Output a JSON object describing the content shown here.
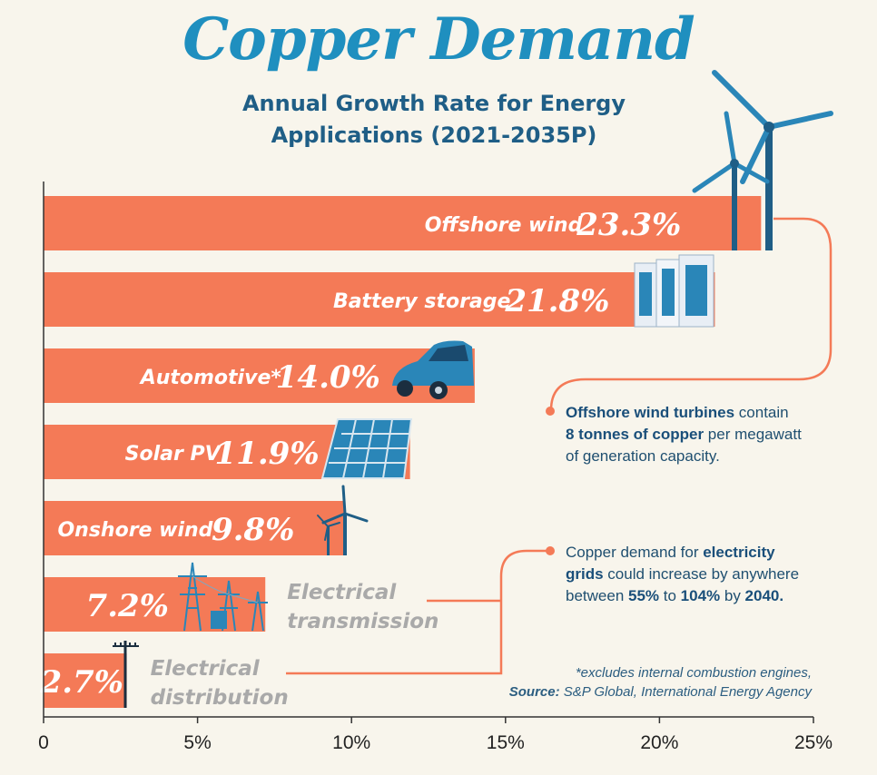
{
  "title": "Copper Demand",
  "subtitle_line1": "Annual Growth Rate for Energy",
  "subtitle_line2": "Applications (2021-2035P)",
  "colors": {
    "bar": "#f47a57",
    "title": "#1f8fbf",
    "text_dark": "#1f4f70",
    "muted_label": "#a9a9a9",
    "icon_blue": "#2a86b8"
  },
  "chart_data": {
    "type": "bar",
    "orientation": "horizontal",
    "categories": [
      "Offshore wind",
      "Battery storage",
      "Automotive*",
      "Solar PV",
      "Onshore wind",
      "Electrical transmission",
      "Electrical distribution"
    ],
    "values": [
      23.3,
      21.8,
      14.0,
      11.9,
      9.8,
      7.2,
      2.7
    ],
    "value_labels": [
      "23.3%",
      "21.8%",
      "14.0%",
      "11.9%",
      "9.8%",
      "7.2%",
      "2.7%"
    ],
    "label_text": [
      "Offshore wind",
      "Battery storage",
      "Automotive*",
      "Solar PV",
      "Onshore wind",
      "Electrical\ntransmission",
      "Electrical\ndistribution"
    ],
    "label_inside": [
      true,
      true,
      true,
      true,
      true,
      false,
      false
    ],
    "xlim": [
      0,
      25
    ],
    "xticks": [
      0,
      5,
      10,
      15,
      20,
      25
    ],
    "xtick_labels": [
      "0",
      "5%",
      "10%",
      "15%",
      "20%",
      "25%"
    ],
    "grid": false,
    "title": "Annual Growth Rate for Energy Applications (2021-2035P)"
  },
  "callout_offshore": {
    "bold1": "Offshore wind turbines",
    "text1": " contain",
    "bold2": "8 tonnes of copper",
    "text2": " per megawatt",
    "text3": "of generation capacity."
  },
  "callout_grids": {
    "text1": "Copper demand for ",
    "bold1": "electricity",
    "bold2": "grids",
    "text2": " could increase by anywhere",
    "text3": "between ",
    "bold3": "55%",
    "text4": " to ",
    "bold4": "104%",
    "text5": " by ",
    "bold5": "2040."
  },
  "footnote": "*excludes internal combustion engines,",
  "source_label": "Source:",
  "source_text": " S&P Global, ",
  "source_text2": "International Energy Agency"
}
